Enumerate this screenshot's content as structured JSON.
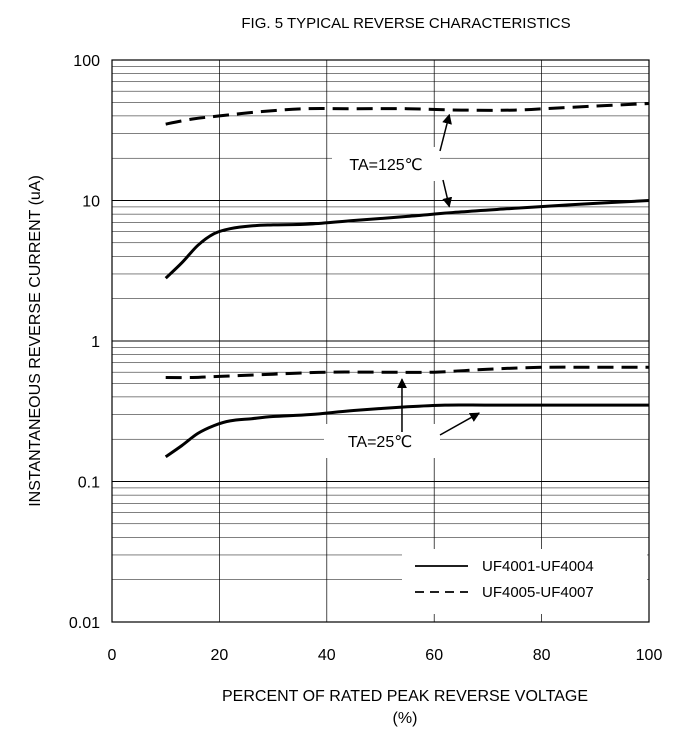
{
  "chart_data": {
    "type": "line",
    "title": "FIG. 5 TYPICAL REVERSE CHARACTERISTICS",
    "xlabel": "PERCENT OF RATED PEAK REVERSE VOLTAGE",
    "xlabel_unit": "(%)",
    "ylabel": "INSTANTANEOUS REVERSE CURRENT (uA)",
    "xlim": [
      0,
      100
    ],
    "ylim": [
      0.01,
      100
    ],
    "y_scale": "log",
    "grid": true,
    "legend_position": "bottom-right",
    "x_ticks": [
      "0",
      "20",
      "40",
      "60",
      "80",
      "100"
    ],
    "y_ticks": [
      {
        "value": 100,
        "label": "100"
      },
      {
        "value": 10,
        "label": "10"
      },
      {
        "value": 1,
        "label": "1"
      },
      {
        "value": 0.1,
        "label": "0.1"
      },
      {
        "value": 0.01,
        "label": "0.01"
      }
    ],
    "series": [
      {
        "name": "UF4001-UF4004",
        "condition": "TA=125℃",
        "style": "solid",
        "x": [
          10,
          13,
          16,
          19,
          22,
          26,
          30,
          37,
          45,
          55,
          65,
          75,
          85,
          100
        ],
        "y": [
          2.8,
          3.6,
          4.8,
          5.8,
          6.3,
          6.6,
          6.7,
          6.8,
          7.2,
          7.7,
          8.3,
          8.8,
          9.3,
          10
        ]
      },
      {
        "name": "UF4005-UF4007",
        "condition": "TA=125℃",
        "style": "dashed",
        "x": [
          10,
          15,
          20,
          28,
          36,
          45,
          55,
          65,
          75,
          85,
          100
        ],
        "y": [
          35,
          38,
          40,
          43,
          45,
          45,
          45,
          44,
          44,
          46,
          49
        ]
      },
      {
        "name": "UF4001-UF4004",
        "condition": "TA=25℃",
        "style": "solid",
        "x": [
          10,
          13,
          16,
          19,
          22,
          26,
          30,
          37,
          45,
          55,
          62,
          70,
          80,
          90,
          100
        ],
        "y": [
          0.15,
          0.18,
          0.22,
          0.25,
          0.27,
          0.28,
          0.29,
          0.3,
          0.32,
          0.34,
          0.35,
          0.35,
          0.35,
          0.35,
          0.35
        ]
      },
      {
        "name": "UF4005-UF4007",
        "condition": "TA=25℃",
        "style": "dashed",
        "x": [
          10,
          15,
          20,
          30,
          40,
          50,
          60,
          70,
          80,
          90,
          100
        ],
        "y": [
          0.55,
          0.55,
          0.56,
          0.58,
          0.6,
          0.6,
          0.6,
          0.63,
          0.65,
          0.65,
          0.65
        ]
      }
    ],
    "legend": [
      {
        "label": "UF4001-UF4004",
        "style": "solid"
      },
      {
        "label": "UF4005-UF4007",
        "style": "dashed"
      }
    ],
    "annotations": [
      {
        "text": "TA=125℃",
        "points_to": [
          [
            63,
            45
          ],
          [
            63,
            8.2
          ]
        ]
      },
      {
        "text": "TA=25℃",
        "points_to": [
          [
            54,
            0.6
          ],
          [
            68,
            0.35
          ]
        ]
      }
    ]
  }
}
